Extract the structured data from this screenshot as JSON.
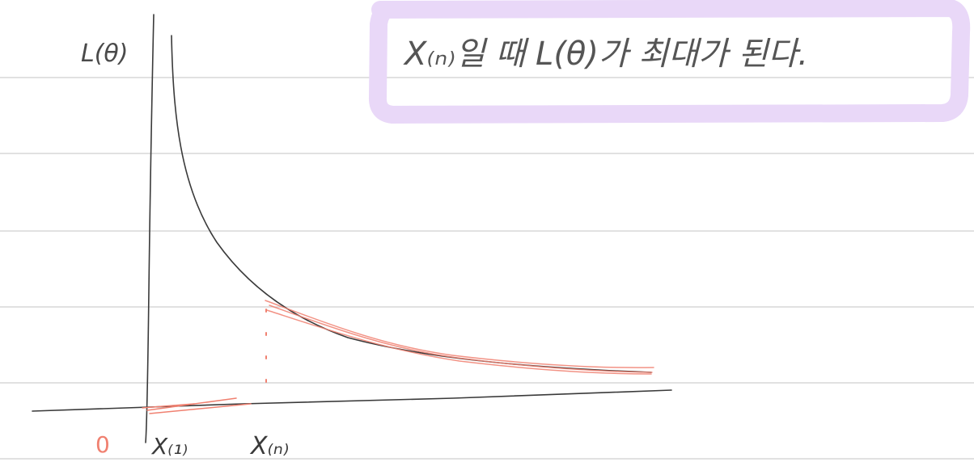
{
  "note": {
    "y_axis_label": "L(θ)",
    "origin_label": "0",
    "tick_left_label": "X₍₁₎",
    "tick_right_label": "X₍ₙ₎",
    "highlight_text": "X₍ₙ₎일 때   L(θ)가 최대가 된다."
  },
  "colors": {
    "ink": "#3a3a3a",
    "rule_line": "#cfcfcf",
    "red_pen": "#f08070",
    "highlight_box": "#e9d8f8",
    "paper": "#ffffff"
  }
}
